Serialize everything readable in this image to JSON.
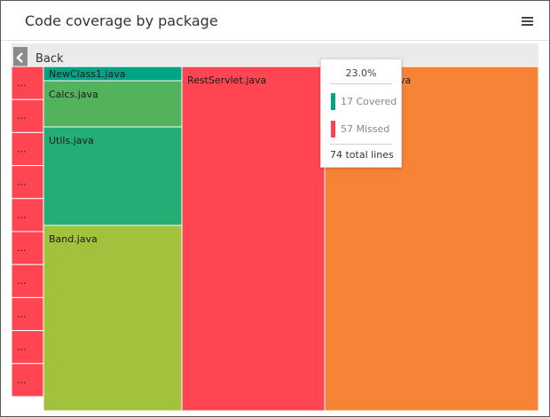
{
  "header": {
    "title": "Code coverage by package"
  },
  "nav": {
    "back_label": "Back"
  },
  "chart_data": {
    "type": "treemap",
    "title": "Code coverage by package",
    "nodes": [
      {
        "name": "...",
        "color": "#ff4552"
      },
      {
        "name": "...",
        "color": "#ff4552"
      },
      {
        "name": "...",
        "color": "#ff4552"
      },
      {
        "name": "...",
        "color": "#ff4552"
      },
      {
        "name": "...",
        "color": "#ff4552"
      },
      {
        "name": "...",
        "color": "#ff4552"
      },
      {
        "name": "...",
        "color": "#ff4552"
      },
      {
        "name": "...",
        "color": "#ff4552"
      },
      {
        "name": "...",
        "color": "#ff4552"
      },
      {
        "name": "...",
        "color": "#ff4552"
      },
      {
        "name": "NewClass1.java",
        "color": "#00a383"
      },
      {
        "name": "Calcs.java",
        "color": "#52b35c"
      },
      {
        "name": "Utils.java",
        "color": "#24ae75"
      },
      {
        "name": "Band.java",
        "color": "#a2c13c"
      },
      {
        "name": "RestServlet.java",
        "color": "#ff4552"
      },
      {
        "name": "va",
        "color": "#f78336",
        "coverage_percent": 23.0,
        "covered": 17,
        "missed": 57,
        "total_lines": 74
      }
    ]
  },
  "tooltip": {
    "percent": "23.0%",
    "covered": "17 Covered",
    "missed": "57 Missed",
    "total": "74  total lines",
    "covered_color": "#00a383",
    "missed_color": "#ff4552"
  }
}
